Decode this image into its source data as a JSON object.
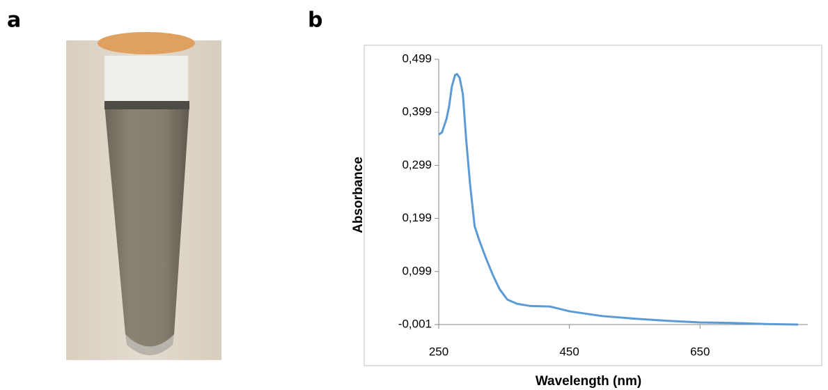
{
  "panels": [
    "a",
    "b"
  ],
  "chart_data": {
    "type": "line",
    "x_label": "Wavelength (nm)",
    "y_label": "Absorbance",
    "x": [
      250,
      255,
      262,
      266,
      270,
      275,
      278,
      282,
      287,
      292,
      298,
      305,
      312,
      322,
      333,
      343,
      355,
      370,
      390,
      420,
      450,
      500,
      550,
      600,
      650,
      700,
      750,
      800
    ],
    "series": [
      {
        "color": "#5b9bd5",
        "values": [
          0.357,
          0.361,
          0.387,
          0.411,
          0.447,
          0.469,
          0.471,
          0.464,
          0.433,
          0.348,
          0.263,
          0.184,
          0.158,
          0.125,
          0.092,
          0.066,
          0.046,
          0.038,
          0.034,
          0.033,
          0.024,
          0.015,
          0.01,
          0.006,
          0.003,
          0.002,
          0.0,
          -0.001
        ]
      }
    ],
    "xlim": [
      250,
      800
    ],
    "ylim": [
      -0.001,
      0.499
    ],
    "xticks": [
      250,
      450,
      650
    ],
    "yticks": [
      {
        "value": 0.499,
        "label": "0,499"
      },
      {
        "value": 0.399,
        "label": "0,399"
      },
      {
        "value": 0.299,
        "label": "0,299"
      },
      {
        "value": 0.199,
        "label": "0,199"
      },
      {
        "value": 0.099,
        "label": "0,099"
      },
      {
        "value": -0.001,
        "label": "-0,001"
      }
    ],
    "grid": false
  }
}
